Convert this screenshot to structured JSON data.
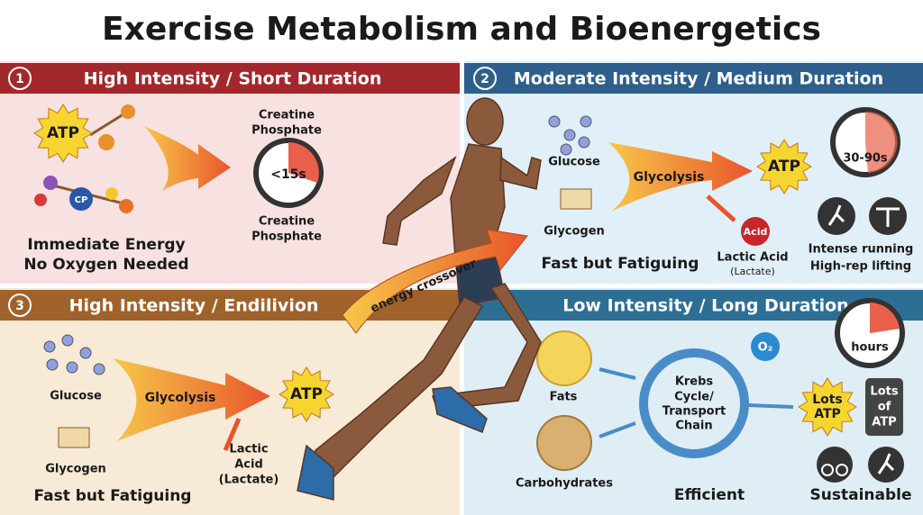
{
  "title": "Exercise Metabolism and Bioenergetics",
  "center_label": "energy crossover",
  "panel1": {
    "number": "1",
    "header": "High Intensity / Short Duration",
    "atp": "ATP",
    "cp": "CP",
    "timer_top": [
      "Creatine",
      "Phosphate"
    ],
    "timer": "<15s",
    "timer_bottom": [
      "Creatine",
      "Phosphate"
    ],
    "caption": [
      "Immediate Energy",
      "No Oxygen Needed"
    ]
  },
  "panel2": {
    "number": "2",
    "header": "Moderate Intensity / Medium Duration",
    "glucose": "Glucose",
    "glycogen": "Glycogen",
    "process": "Glycolysis",
    "atp": "ATP",
    "acid": "Acid",
    "lactic": [
      "Lactic Acid",
      "(Lactate)"
    ],
    "timer": "30-90s",
    "examples": [
      "Intense running",
      "High-rep lifting"
    ],
    "caption": "Fast but Fatiguing"
  },
  "panel3": {
    "number": "3",
    "header": "High Intensity / Endilivion",
    "glucose": "Glucose",
    "glycogen": "Glycogen",
    "process": "Glycolysis",
    "atp": "ATP",
    "lactic": [
      "Lactic",
      "Acid",
      "(Lactate)"
    ],
    "caption": "Fast but Fatiguing"
  },
  "panel4": {
    "header": "Low Intensity / Long Duration",
    "fats": "Fats",
    "carbs": "Carbohydrates",
    "cycle": [
      "Krebs",
      "Cycle/",
      "Transport",
      "Chain"
    ],
    "oxygen": "O₂",
    "lots_atp": [
      "Lots",
      "ATP"
    ],
    "box": [
      "Lots",
      "of",
      "ATP"
    ],
    "timer": "hours",
    "caption_left": "Efficient",
    "caption_right": "Sustainable"
  }
}
